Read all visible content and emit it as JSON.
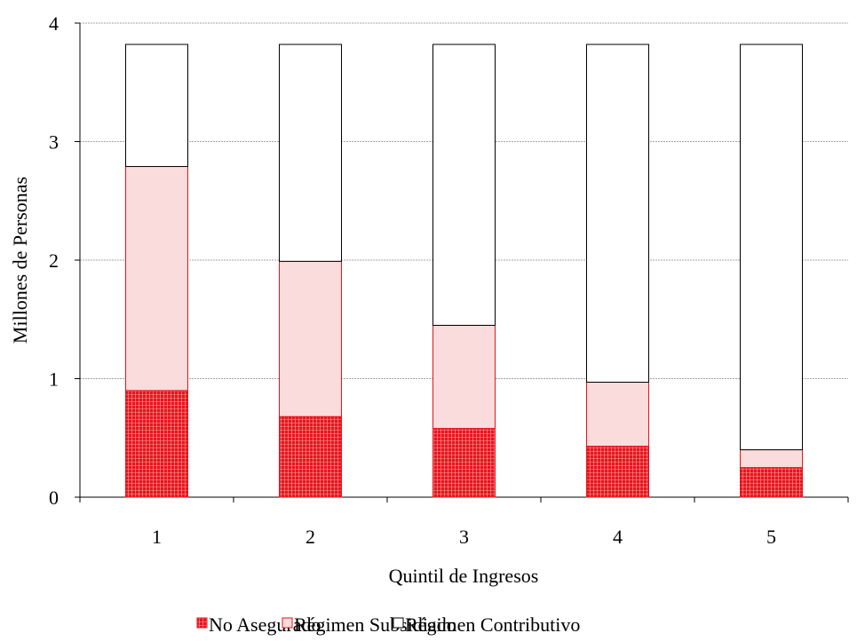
{
  "chart_data": {
    "type": "stacked_bar",
    "x_label": "Quintil de Ingresos",
    "y_label": "Millones de Personas",
    "categories": [
      "1",
      "2",
      "3",
      "4",
      "5"
    ],
    "series": [
      {
        "name": "No Asegurado",
        "color": "#e8141c",
        "edgecolor": "#e8141c",
        "values": [
          0.9,
          0.68,
          0.58,
          0.43,
          0.25
        ]
      },
      {
        "name": "Régimen Subsidiado",
        "color": "#fadcdc",
        "edgecolor": "#e8141c",
        "values": [
          1.89,
          1.31,
          0.87,
          0.54,
          0.15
        ]
      },
      {
        "name": "Régimen Contributivo",
        "color": "#ffffff",
        "edgecolor": "#000000",
        "values": [
          1.03,
          1.83,
          2.37,
          2.85,
          3.42
        ]
      }
    ],
    "ylim": [
      0,
      4
    ],
    "yticks": [
      0,
      1,
      2,
      3,
      4
    ],
    "grid": true,
    "legend": "bottom"
  }
}
